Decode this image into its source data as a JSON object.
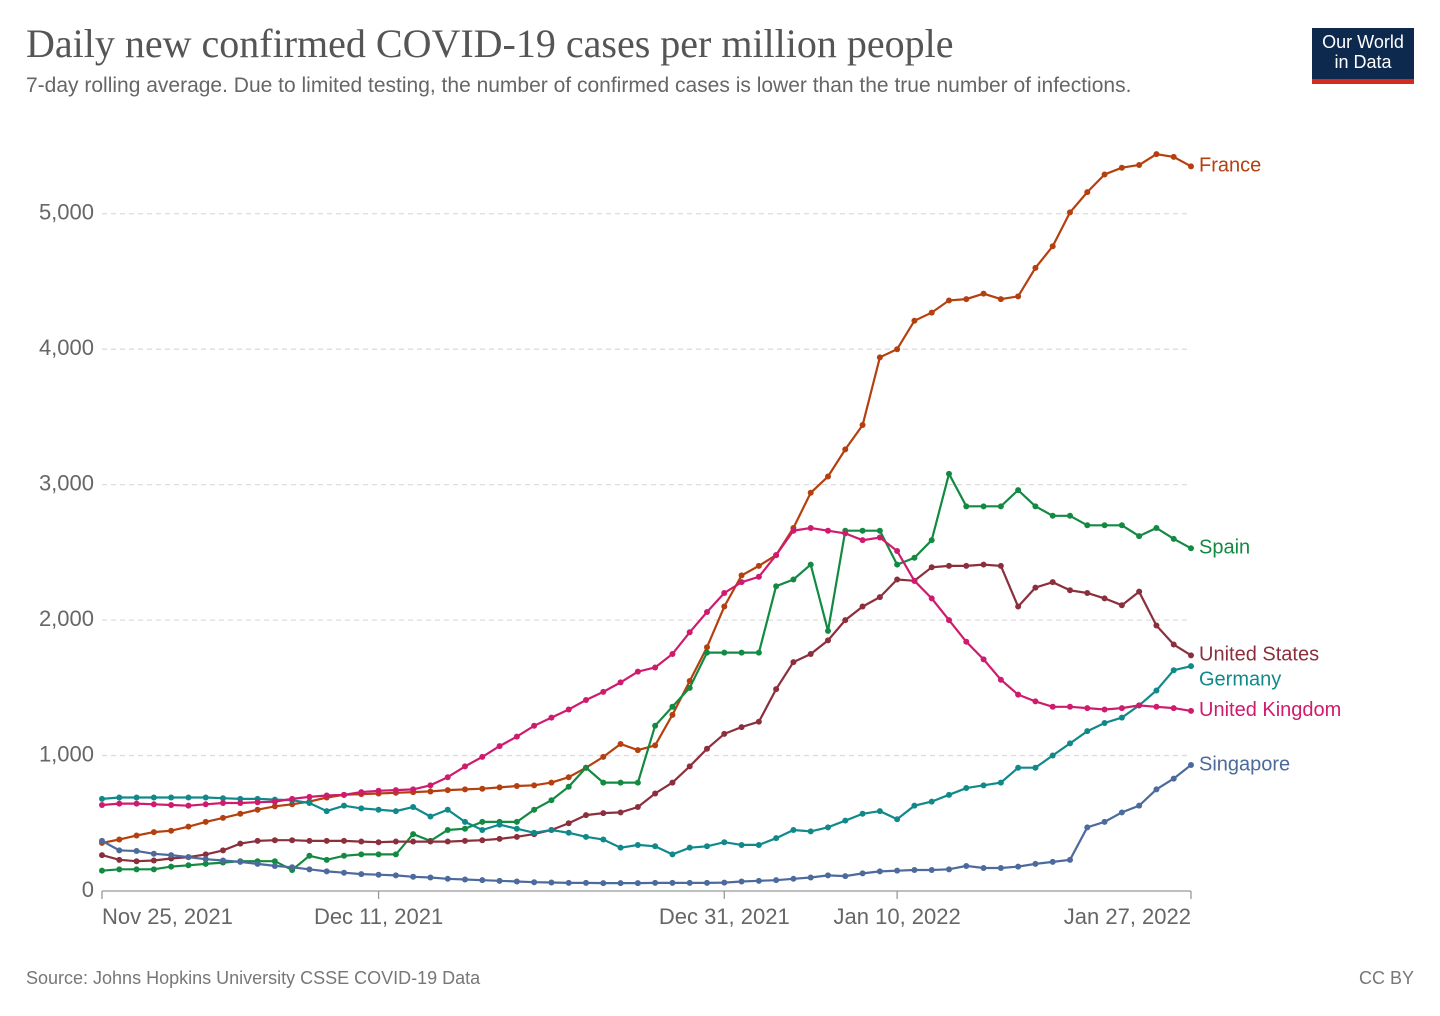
{
  "chart_data": {
    "type": "line",
    "title": "Daily new confirmed COVID-19 cases per million people",
    "subtitle": "7-day rolling average. Due to limited testing, the number of confirmed cases is lower than the true number of infections.",
    "source": "Source: Johns Hopkins University CSSE COVID-19 Data",
    "license": "CC BY",
    "logo": [
      "Our World",
      "in Data"
    ],
    "grid": true,
    "x": [
      "2021-11-25",
      "2021-11-26",
      "2021-11-27",
      "2021-11-28",
      "2021-11-29",
      "2021-11-30",
      "2021-12-01",
      "2021-12-02",
      "2021-12-03",
      "2021-12-04",
      "2021-12-05",
      "2021-12-06",
      "2021-12-07",
      "2021-12-08",
      "2021-12-09",
      "2021-12-10",
      "2021-12-11",
      "2021-12-12",
      "2021-12-13",
      "2021-12-14",
      "2021-12-15",
      "2021-12-16",
      "2021-12-17",
      "2021-12-18",
      "2021-12-19",
      "2021-12-20",
      "2021-12-21",
      "2021-12-22",
      "2021-12-23",
      "2021-12-24",
      "2021-12-25",
      "2021-12-26",
      "2021-12-27",
      "2021-12-28",
      "2021-12-29",
      "2021-12-30",
      "2021-12-31",
      "2022-01-01",
      "2022-01-02",
      "2022-01-03",
      "2022-01-04",
      "2022-01-05",
      "2022-01-06",
      "2022-01-07",
      "2022-01-08",
      "2022-01-09",
      "2022-01-10",
      "2022-01-11",
      "2022-01-12",
      "2022-01-13",
      "2022-01-14",
      "2022-01-15",
      "2022-01-16",
      "2022-01-17",
      "2022-01-18",
      "2022-01-19",
      "2022-01-20",
      "2022-01-21",
      "2022-01-22",
      "2022-01-23",
      "2022-01-24",
      "2022-01-25",
      "2022-01-26",
      "2022-01-27"
    ],
    "xlim": [
      "2021-11-25",
      "2022-01-27"
    ],
    "xticks": [
      {
        "value": "2021-11-25",
        "label": "Nov 25, 2021"
      },
      {
        "value": "2021-12-11",
        "label": "Dec 11, 2021"
      },
      {
        "value": "2021-12-31",
        "label": "Dec 31, 2021"
      },
      {
        "value": "2022-01-10",
        "label": "Jan 10, 2022"
      },
      {
        "value": "2022-01-27",
        "label": "Jan 27, 2022"
      }
    ],
    "ylim": [
      0,
      5500
    ],
    "yticks": [
      0,
      {
        "value": 1000,
        "label": "1,000"
      },
      {
        "value": 2000,
        "label": "2,000"
      },
      {
        "value": 3000,
        "label": "3,000"
      },
      {
        "value": 4000,
        "label": "4,000"
      },
      {
        "value": 5000,
        "label": "5,000"
      }
    ],
    "series": [
      {
        "name": "France",
        "color": "#b5400f",
        "values": [
          355,
          380,
          410,
          435,
          445,
          475,
          510,
          540,
          570,
          600,
          625,
          640,
          660,
          690,
          710,
          715,
          720,
          725,
          730,
          735,
          745,
          750,
          755,
          765,
          775,
          780,
          800,
          840,
          910,
          990,
          1085,
          1040,
          1075,
          1300,
          1550,
          1800,
          2100,
          2330,
          2400,
          2480,
          2680,
          2940,
          3060,
          3260,
          3440,
          3940,
          4000,
          4210,
          4270,
          4360,
          4370,
          4410,
          4370,
          4390,
          4600,
          4760,
          5010,
          5160,
          5290,
          5340,
          5360,
          5440,
          5420,
          5350
        ]
      },
      {
        "name": "Spain",
        "color": "#138a42",
        "values": [
          150,
          160,
          160,
          160,
          180,
          190,
          200,
          210,
          220,
          220,
          220,
          155,
          260,
          230,
          260,
          270,
          270,
          270,
          420,
          370,
          450,
          460,
          510,
          510,
          510,
          600,
          670,
          770,
          910,
          800,
          800,
          800,
          1220,
          1360,
          1500,
          1760,
          1760,
          1760,
          1760,
          2250,
          2300,
          2410,
          1920,
          2660,
          2660,
          2660,
          2410,
          2460,
          2590,
          3080,
          2840,
          2840,
          2840,
          2960,
          2840,
          2770,
          2770,
          2700,
          2700,
          2700,
          2620,
          2680,
          2600,
          2530
        ]
      },
      {
        "name": "United States",
        "color": "#8c2f3d",
        "values": [
          265,
          230,
          220,
          225,
          240,
          250,
          270,
          300,
          350,
          370,
          375,
          375,
          370,
          370,
          370,
          365,
          360,
          365,
          365,
          365,
          365,
          370,
          375,
          385,
          400,
          420,
          450,
          500,
          560,
          575,
          580,
          620,
          720,
          800,
          920,
          1050,
          1160,
          1210,
          1250,
          1490,
          1690,
          1750,
          1850,
          2000,
          2100,
          2170,
          2300,
          2290,
          2390,
          2400,
          2400,
          2410,
          2400,
          2100,
          2240,
          2280,
          2220,
          2200,
          2160,
          2110,
          2210,
          1960,
          1820,
          1740
        ]
      },
      {
        "name": "Germany",
        "color": "#10898b",
        "values": [
          680,
          690,
          690,
          690,
          690,
          690,
          690,
          685,
          680,
          680,
          675,
          670,
          650,
          590,
          630,
          610,
          600,
          590,
          620,
          550,
          600,
          510,
          450,
          490,
          460,
          430,
          450,
          430,
          400,
          380,
          320,
          340,
          330,
          270,
          320,
          330,
          360,
          340,
          340,
          390,
          450,
          440,
          470,
          520,
          570,
          590,
          530,
          630,
          660,
          710,
          760,
          780,
          800,
          910,
          910,
          1000,
          1090,
          1180,
          1240,
          1280,
          1370,
          1480,
          1630,
          1660
        ]
      },
      {
        "name": "United Kingdom",
        "color": "#cf1b6e",
        "values": [
          635,
          645,
          645,
          640,
          635,
          630,
          640,
          650,
          650,
          655,
          660,
          680,
          695,
          705,
          710,
          730,
          740,
          745,
          750,
          780,
          840,
          920,
          990,
          1070,
          1140,
          1220,
          1280,
          1340,
          1410,
          1470,
          1540,
          1620,
          1650,
          1750,
          1910,
          2060,
          2200,
          2280,
          2320,
          2480,
          2660,
          2680,
          2660,
          2640,
          2590,
          2610,
          2510,
          2290,
          2160,
          2000,
          1840,
          1710,
          1560,
          1450,
          1400,
          1360,
          1360,
          1350,
          1340,
          1350,
          1370,
          1360,
          1350,
          1330
        ]
      },
      {
        "name": "Singapore",
        "color": "#4c6a9c",
        "values": [
          370,
          300,
          295,
          275,
          265,
          250,
          235,
          225,
          215,
          200,
          185,
          175,
          160,
          145,
          135,
          125,
          120,
          115,
          105,
          100,
          90,
          85,
          80,
          75,
          70,
          65,
          63,
          60,
          60,
          58,
          58,
          58,
          60,
          60,
          60,
          60,
          62,
          70,
          75,
          80,
          90,
          100,
          115,
          110,
          130,
          145,
          150,
          155,
          155,
          160,
          185,
          170,
          170,
          180,
          200,
          215,
          230,
          470,
          510,
          580,
          630,
          750,
          830,
          930
        ]
      }
    ]
  }
}
